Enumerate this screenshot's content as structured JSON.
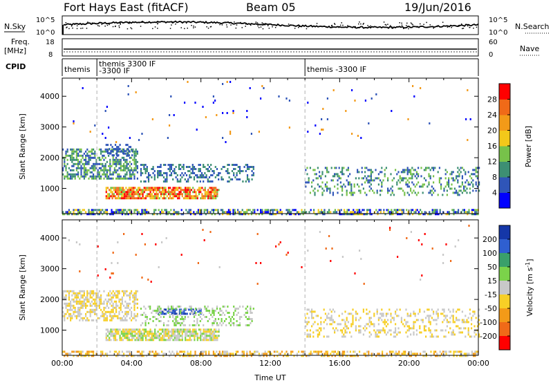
{
  "header": {
    "station": "Fort Hays East (fitACF)",
    "beam": "Beam 05",
    "date": "19/Jun/2016"
  },
  "noise_panel": {
    "left_label": "N.Sky",
    "right_label": "N.Search",
    "left_ticks": [
      "10^5",
      "10^0"
    ],
    "right_ticks": [
      "10^5",
      "10^0"
    ]
  },
  "freq_panel": {
    "left_label_1": "Freq.",
    "left_label_2": "[MHz]",
    "right_label": "Nave",
    "left_ticks": [
      "18",
      "8"
    ],
    "right_ticks": [
      "60",
      "0"
    ]
  },
  "cpid_panel": {
    "label": "CPID",
    "segments": [
      {
        "start_hour": 0.0,
        "text_top": "themis",
        "text_bottom": ""
      },
      {
        "start_hour": 2.0,
        "text_top": "themis 3300 IF",
        "text_bottom": "-3300 IF"
      },
      {
        "start_hour": 14.0,
        "text_top": "themis -3300 IF",
        "text_bottom": ""
      }
    ]
  },
  "chart_data": [
    {
      "type": "heatmap",
      "name": "power",
      "ylabel": "Slant Range [km]",
      "xlabel": "",
      "ylim": [
        180,
        4590
      ],
      "xlim": [
        0,
        24
      ],
      "yticks": [
        "1000",
        "2000",
        "3000",
        "4000"
      ],
      "colorbar": {
        "label": "Power [dB]",
        "ticks": [
          "4",
          "8",
          "12",
          "16",
          "20",
          "24",
          "28"
        ],
        "colors": [
          "#0000ff",
          "#2f55b8",
          "#3d8f73",
          "#77c24a",
          "#f3c81a",
          "#f39a18",
          "#f06a18",
          "#ff0000"
        ]
      },
      "regions": [
        {
          "t0": 0.0,
          "t1": 24.0,
          "r0": 180,
          "r1": 330,
          "colors": [
            "#0000ff",
            "#2f55b8",
            "#3d8f73",
            "#77c24a",
            "#f3c81a"
          ],
          "density": 0.55
        },
        {
          "t0": 2.5,
          "t1": 9.0,
          "r0": 700,
          "r1": 1050,
          "colors": [
            "#77c24a",
            "#f3c81a",
            "#f39a18",
            "#f06a18",
            "#ff0000"
          ],
          "density": 0.8
        },
        {
          "t0": 0.0,
          "t1": 4.3,
          "r0": 1300,
          "r1": 2300,
          "colors": [
            "#2f55b8",
            "#3d8f73",
            "#77c24a"
          ],
          "density": 0.55
        },
        {
          "t0": 4.5,
          "t1": 11.0,
          "r0": 1200,
          "r1": 1800,
          "colors": [
            "#2f55b8",
            "#3d8f73"
          ],
          "density": 0.35
        },
        {
          "t0": 14.0,
          "t1": 24.0,
          "r0": 800,
          "r1": 1700,
          "colors": [
            "#2f55b8",
            "#3d8f73",
            "#77c24a"
          ],
          "density": 0.25
        },
        {
          "t0": 2.5,
          "t1": 4.0,
          "r0": 2100,
          "r1": 2450,
          "colors": [
            "#2f55b8"
          ],
          "density": 0.4
        },
        {
          "t0": 0.0,
          "t1": 24.0,
          "r0": 2500,
          "r1": 4500,
          "colors": [
            "#2f55b8",
            "#0000ff",
            "#f39a18"
          ],
          "density": 0.01
        }
      ],
      "dashed_time_lines": [
        2.0,
        14.0
      ]
    },
    {
      "type": "heatmap",
      "name": "velocity",
      "ylabel": "Slant Range [km]",
      "xlabel": "Time UT",
      "ylim": [
        180,
        4590
      ],
      "xlim": [
        0,
        24
      ],
      "yticks": [
        "1000",
        "2000",
        "3000",
        "4000"
      ],
      "xticks": [
        "00:00",
        "04:00",
        "08:00",
        "12:00",
        "16:00",
        "20:00",
        "00:00"
      ],
      "colorbar": {
        "label": "Velocity [m s^-1]",
        "ticks": [
          "200",
          "100",
          "50",
          "15",
          "-15",
          "-50",
          "-100",
          "-200"
        ],
        "colors": [
          "#1537a8",
          "#2f5fd0",
          "#3aa06a",
          "#7bd34a",
          "#c8c8c8",
          "#f7cf26",
          "#f39a18",
          "#f06a18",
          "#ff0000"
        ]
      },
      "regions": [
        {
          "t0": 0.0,
          "t1": 24.0,
          "r0": 180,
          "r1": 330,
          "colors": [
            "#f7cf26",
            "#f39a18",
            "#c8c8c8"
          ],
          "density": 0.45
        },
        {
          "t0": 2.5,
          "t1": 9.0,
          "r0": 650,
          "r1": 1050,
          "colors": [
            "#c8c8c8",
            "#7bd34a",
            "#f7cf26"
          ],
          "density": 0.75
        },
        {
          "t0": 0.0,
          "t1": 4.3,
          "r0": 1300,
          "r1": 2300,
          "colors": [
            "#c8c8c8",
            "#f7cf26"
          ],
          "density": 0.55
        },
        {
          "t0": 5.5,
          "t1": 8.0,
          "r0": 1550,
          "r1": 1700,
          "colors": [
            "#1537a8",
            "#2f5fd0"
          ],
          "density": 0.6
        },
        {
          "t0": 4.5,
          "t1": 11.0,
          "r0": 1150,
          "r1": 1800,
          "colors": [
            "#c8c8c8",
            "#7bd34a"
          ],
          "density": 0.3
        },
        {
          "t0": 14.0,
          "t1": 24.0,
          "r0": 800,
          "r1": 1700,
          "colors": [
            "#c8c8c8",
            "#f7cf26"
          ],
          "density": 0.25
        },
        {
          "t0": 0.0,
          "t1": 24.0,
          "r0": 2500,
          "r1": 4500,
          "colors": [
            "#c8c8c8",
            "#ff0000",
            "#f06a18"
          ],
          "density": 0.01
        }
      ],
      "dashed_time_lines": [
        2.0,
        14.0
      ]
    }
  ]
}
